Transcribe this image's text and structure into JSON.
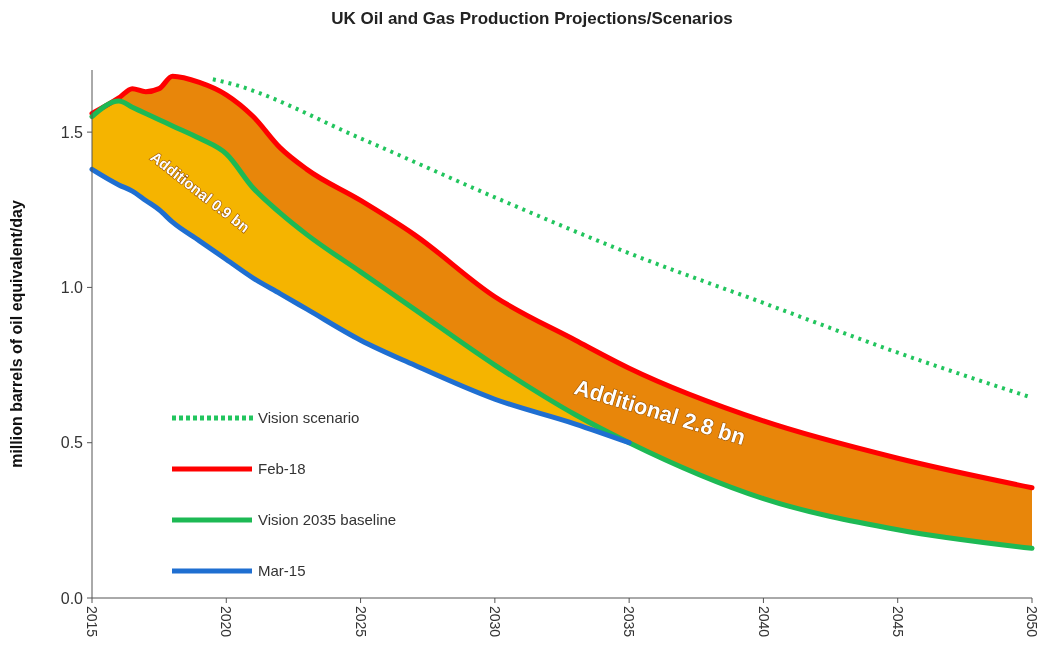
{
  "chart_data": {
    "type": "line",
    "title": "UK Oil and Gas Production Projections/Scenarios",
    "ylabel": "million barrels of oil equivalent/day",
    "xlim": [
      2015,
      2050
    ],
    "xticks": [
      2015,
      2020,
      2025,
      2030,
      2035,
      2040,
      2045,
      2050
    ],
    "ylim": [
      0,
      1.7
    ],
    "yticks": [
      {
        "value": 0,
        "label": "0.0"
      },
      0.5,
      {
        "value": 1,
        "label": "1.0"
      },
      1.5
    ],
    "grid": false,
    "legend": "bottom left",
    "series": [
      {
        "name": "Vision scenario",
        "color": "#22c55e",
        "line_style": "dotted",
        "x": [
          2019.5,
          2020,
          2025,
          2030,
          2035,
          2040,
          2045,
          2050
        ],
        "values": [
          1.67,
          1.66,
          1.48,
          1.29,
          1.11,
          0.95,
          0.79,
          0.645
        ]
      },
      {
        "name": "Feb-18",
        "color": "#ff0000",
        "x": [
          2015,
          2016,
          2016.5,
          2017,
          2017.5,
          2018,
          2019,
          2020,
          2021,
          2022,
          2023,
          2025,
          2027,
          2030,
          2033,
          2035,
          2040,
          2045,
          2050
        ],
        "values": [
          1.56,
          1.61,
          1.64,
          1.63,
          1.64,
          1.68,
          1.66,
          1.62,
          1.55,
          1.45,
          1.38,
          1.28,
          1.17,
          0.97,
          0.83,
          0.74,
          0.57,
          0.45,
          0.355
        ],
        "lower": [
          1.55,
          1.6,
          1.58,
          1.56,
          1.54,
          1.52,
          1.48,
          1.43,
          1.32,
          1.24,
          1.17,
          1.05,
          0.93,
          0.75,
          0.59,
          0.5,
          0.32,
          0.22,
          0.16
        ],
        "upper": [
          1.56,
          1.61,
          1.64,
          1.63,
          1.64,
          1.68,
          1.66,
          1.62,
          1.55,
          1.45,
          1.38,
          1.28,
          1.17,
          0.97,
          0.83,
          0.74,
          0.57,
          0.45,
          0.355
        ]
      },
      {
        "name": "Vision 2035 baseline",
        "color": "#1db954",
        "x": [
          2015,
          2016,
          2016.5,
          2017,
          2017.5,
          2018,
          2019,
          2020,
          2021,
          2022,
          2023,
          2025,
          2027,
          2030,
          2033,
          2035,
          2040,
          2045,
          2050
        ],
        "values": [
          1.55,
          1.6,
          1.58,
          1.56,
          1.54,
          1.52,
          1.48,
          1.43,
          1.32,
          1.24,
          1.17,
          1.05,
          0.93,
          0.75,
          0.59,
          0.5,
          0.32,
          0.22,
          0.16
        ]
      },
      {
        "name": "Mar-15",
        "color": "#1f6fd1",
        "x": [
          2015,
          2016,
          2016.5,
          2017,
          2017.5,
          2018,
          2019,
          2020,
          2021,
          2022,
          2023,
          2025,
          2027,
          2030,
          2033,
          2035
        ],
        "values": [
          1.38,
          1.33,
          1.31,
          1.28,
          1.25,
          1.21,
          1.15,
          1.09,
          1.03,
          0.98,
          0.93,
          0.83,
          0.75,
          0.64,
          0.56,
          0.5
        ],
        "lower": [
          1.38,
          1.33,
          1.31,
          1.28,
          1.25,
          1.21,
          1.15,
          1.09,
          1.03,
          0.98,
          0.93,
          0.83,
          0.75,
          0.64,
          0.56,
          0.5
        ],
        "upper": [
          1.55,
          1.6,
          1.58,
          1.56,
          1.54,
          1.52,
          1.48,
          1.43,
          1.32,
          1.24,
          1.17,
          1.05,
          0.93,
          0.75,
          0.59,
          0.5
        ]
      }
    ],
    "annotations": [
      "Additional 0.9 bn",
      "Additional 2.8 bn"
    ]
  }
}
